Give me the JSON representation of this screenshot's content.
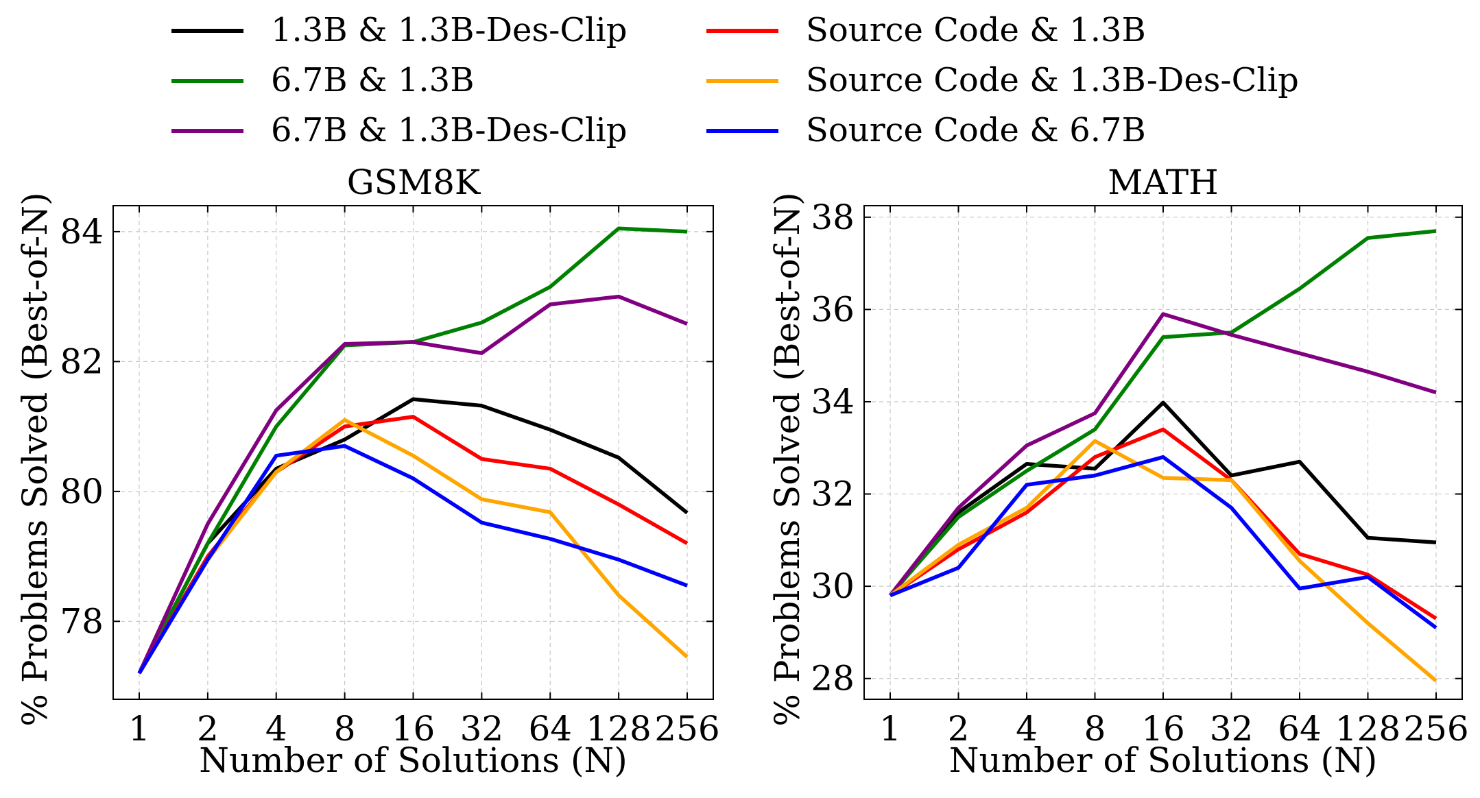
{
  "chart_data": [
    {
      "type": "line",
      "title": "GSM8K",
      "xlabel": "Number of Solutions (N)",
      "ylabel": "% Problems Solved (Best-of-N)",
      "categories": [
        "1",
        "2",
        "4",
        "8",
        "16",
        "32",
        "64",
        "128",
        "256"
      ],
      "ylim": [
        76.8,
        84.4
      ],
      "yticks": [
        78,
        80,
        82,
        84
      ],
      "ytick_labels": [
        "78",
        "80",
        "82",
        "84"
      ],
      "grid": true,
      "series": [
        {
          "name": "1.3B & 1.3B-Des-Clip",
          "color": "#000000",
          "values": [
            77.2,
            79.2,
            80.35,
            80.8,
            81.42,
            81.32,
            80.95,
            80.52,
            79.67
          ]
        },
        {
          "name": "6.7B & 1.3B",
          "color": "#008000",
          "values": [
            77.2,
            79.2,
            81.0,
            82.25,
            82.3,
            82.6,
            83.15,
            84.05,
            84.0
          ]
        },
        {
          "name": "6.7B & 1.3B-Des-Clip",
          "color": "#800080",
          "values": [
            77.2,
            79.5,
            81.25,
            82.27,
            82.3,
            82.13,
            82.88,
            83.0,
            82.58
          ]
        },
        {
          "name": "Source Code & 1.3B",
          "color": "#ff0000",
          "values": [
            77.2,
            79.0,
            80.3,
            81.0,
            81.15,
            80.5,
            80.35,
            79.8,
            79.2
          ]
        },
        {
          "name": "Source Code & 1.3B-Des-Clip",
          "color": "#ffa500",
          "values": [
            77.2,
            78.95,
            80.3,
            81.1,
            80.55,
            79.88,
            79.68,
            78.4,
            77.45
          ]
        },
        {
          "name": "Source Code & 6.7B",
          "color": "#0000ff",
          "values": [
            77.2,
            78.95,
            80.55,
            80.7,
            80.2,
            79.52,
            79.27,
            78.95,
            78.55
          ]
        }
      ]
    },
    {
      "type": "line",
      "title": "MATH",
      "xlabel": "Number of Solutions (N)",
      "ylabel": "% Problems Solved (Best-of-N)",
      "categories": [
        "1",
        "2",
        "4",
        "8",
        "16",
        "32",
        "64",
        "128",
        "256"
      ],
      "ylim": [
        27.55,
        38.25
      ],
      "yticks": [
        28,
        30,
        32,
        34,
        36,
        38
      ],
      "ytick_labels": [
        "28",
        "30",
        "32",
        "34",
        "36",
        "38"
      ],
      "grid": true,
      "series": [
        {
          "name": "1.3B & 1.3B-Des-Clip",
          "color": "#000000",
          "values": [
            29.8,
            31.6,
            32.65,
            32.55,
            33.98,
            32.4,
            32.7,
            31.05,
            30.95
          ]
        },
        {
          "name": "6.7B & 1.3B",
          "color": "#008000",
          "values": [
            29.8,
            31.5,
            32.5,
            33.4,
            35.4,
            35.5,
            36.45,
            37.55,
            37.7
          ]
        },
        {
          "name": "6.7B & 1.3B-Des-Clip",
          "color": "#800080",
          "values": [
            29.8,
            31.7,
            33.05,
            33.75,
            35.9,
            35.45,
            35.05,
            34.65,
            34.2
          ]
        },
        {
          "name": "Source Code & 1.3B",
          "color": "#ff0000",
          "values": [
            29.8,
            30.8,
            31.6,
            32.8,
            33.4,
            32.3,
            30.7,
            30.25,
            29.3
          ]
        },
        {
          "name": "Source Code & 1.3B-Des-Clip",
          "color": "#ffa500",
          "values": [
            29.8,
            30.9,
            31.7,
            33.15,
            32.35,
            32.3,
            30.55,
            29.2,
            27.95
          ]
        },
        {
          "name": "Source Code & 6.7B",
          "color": "#0000ff",
          "values": [
            29.8,
            30.4,
            32.2,
            32.4,
            32.8,
            31.7,
            29.95,
            30.2,
            29.1
          ]
        }
      ]
    }
  ],
  "legend": {
    "placement": "top",
    "columns": 2,
    "entries": [
      {
        "label": "1.3B & 1.3B-Des-Clip",
        "color": "#000000"
      },
      {
        "label": "6.7B & 1.3B",
        "color": "#008000"
      },
      {
        "label": "6.7B & 1.3B-Des-Clip",
        "color": "#800080"
      },
      {
        "label": "Source Code & 1.3B",
        "color": "#ff0000"
      },
      {
        "label": "Source Code & 1.3B-Des-Clip",
        "color": "#ffa500"
      },
      {
        "label": "Source Code & 6.7B",
        "color": "#0000ff"
      }
    ]
  }
}
